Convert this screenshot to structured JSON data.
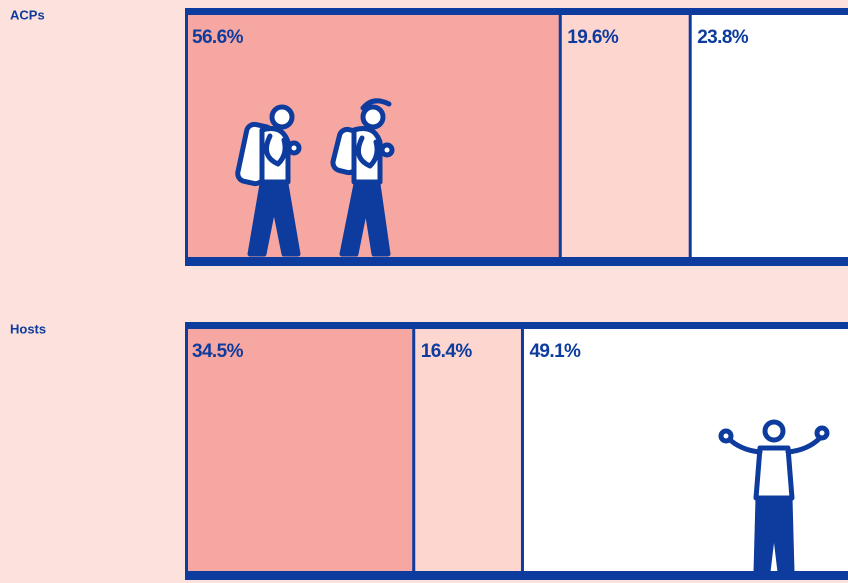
{
  "chart_data": {
    "type": "bar",
    "orientation": "horizontal",
    "stacked": true,
    "categories": [
      "ACPs",
      "Hosts"
    ],
    "xlim": [
      0,
      100
    ],
    "series": [
      {
        "color": "#f6a7a1",
        "values": [
          56.6,
          34.5
        ],
        "value_labels": [
          "56.6%",
          "34.5%"
        ]
      },
      {
        "color": "#fdd6d0",
        "values": [
          19.6,
          16.4
        ],
        "value_labels": [
          "19.6%",
          "16.4%"
        ]
      },
      {
        "color": "#ffffff",
        "values": [
          23.8,
          49.1
        ],
        "value_labels": [
          "23.8%",
          "49.1%"
        ]
      }
    ]
  }
}
